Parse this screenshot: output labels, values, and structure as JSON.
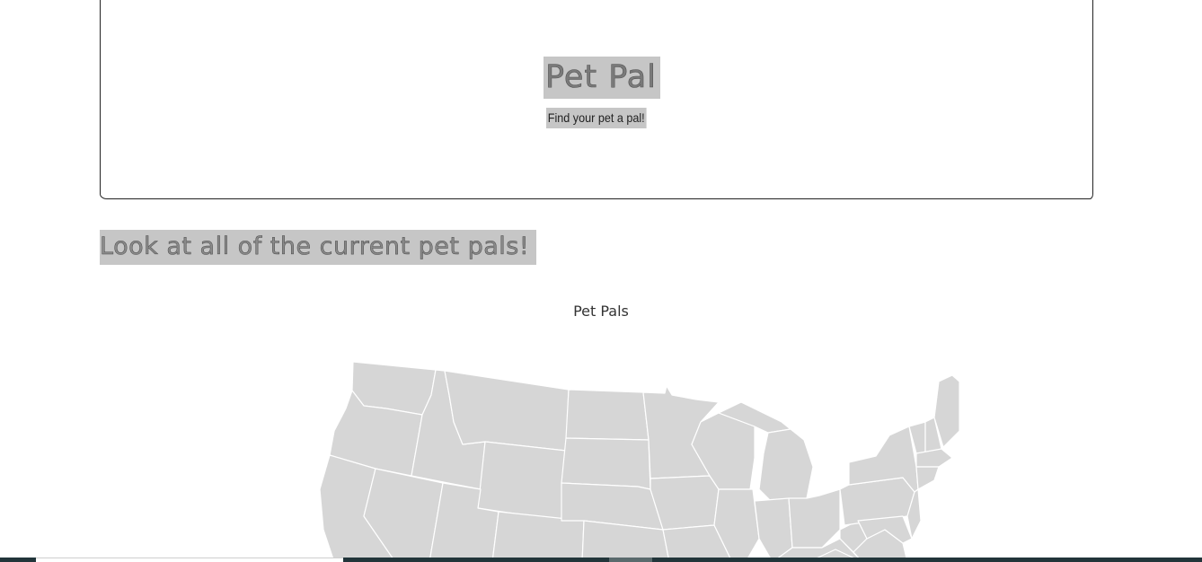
{
  "header": {
    "title": "Pet Pal",
    "subtitle": "Find your pet a pal!"
  },
  "section": {
    "heading": "Look at all of the current pet pals!"
  },
  "map": {
    "title": "Pet Pals",
    "fill_color": "#d6d6d6",
    "border_color": "#ffffff"
  },
  "colors": {
    "highlight": "#c6c6c6",
    "frame": "#222222",
    "bottom_bar": "#22353a"
  }
}
